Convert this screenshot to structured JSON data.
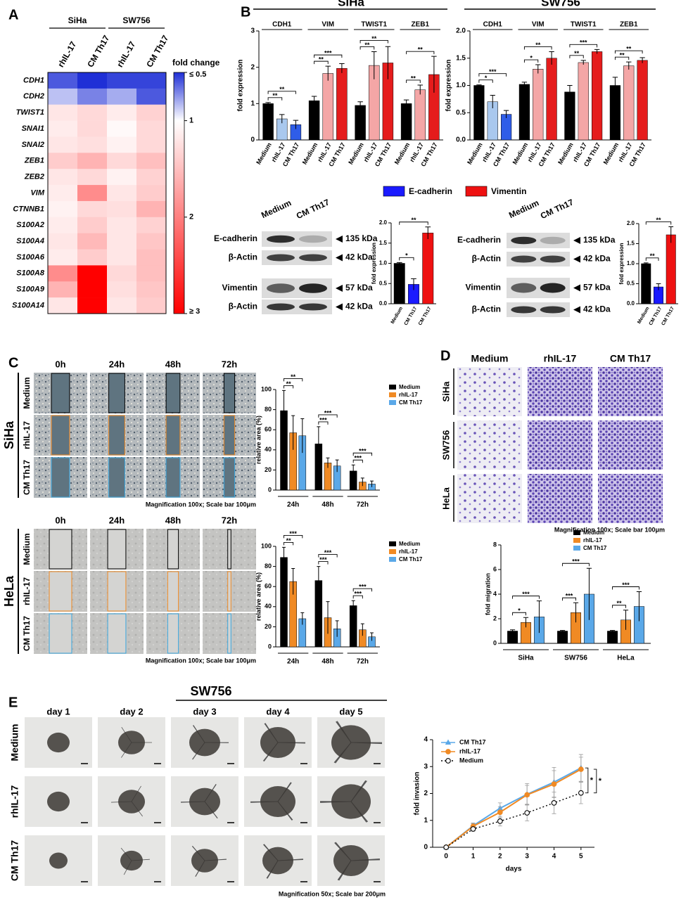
{
  "panel_labels": [
    "A",
    "B",
    "C",
    "D",
    "E"
  ],
  "chart_data": [
    {
      "type": "heatmap",
      "row_labels": [
        "CDH1",
        "CDH2",
        "TWIST1",
        "SNAI1",
        "SNAI2",
        "ZEB1",
        "ZEB2",
        "VIM",
        "CTNNB1",
        "S100A2",
        "S100A4",
        "S100A6",
        "S100A8",
        "S100A9",
        "S100A14"
      ],
      "groups": [
        "SiHa",
        "SW756"
      ],
      "columns": [
        "rhIL-17",
        "CM Th17",
        "rhIL-17",
        "CM Th17"
      ],
      "values": [
        [
          0.6,
          0.5,
          0.55,
          0.55
        ],
        [
          0.85,
          0.7,
          0.8,
          0.6
        ],
        [
          1.2,
          1.3,
          1.15,
          1.35
        ],
        [
          1.15,
          1.3,
          1.05,
          1.3
        ],
        [
          1.2,
          1.25,
          1.1,
          1.3
        ],
        [
          1.4,
          1.6,
          1.3,
          1.5
        ],
        [
          1.2,
          1.3,
          1.1,
          1.35
        ],
        [
          1.15,
          1.9,
          1.2,
          1.4
        ],
        [
          1.1,
          1.3,
          1.25,
          1.6
        ],
        [
          1.15,
          1.4,
          1.2,
          1.35
        ],
        [
          1.2,
          1.55,
          1.2,
          1.45
        ],
        [
          1.15,
          1.4,
          1.2,
          1.5
        ],
        [
          1.9,
          3,
          1.3,
          1.5
        ],
        [
          1.6,
          3,
          1.25,
          1.45
        ],
        [
          1.2,
          3,
          1.2,
          1.4
        ]
      ],
      "colorbar_title": "fold change",
      "clim": [
        0.5,
        3
      ],
      "cticks": [
        {
          "value": 0.5,
          "label": "≤ 0.5"
        },
        1,
        2,
        {
          "value": 3,
          "label": "≥ 3"
        }
      ],
      "colors": [
        "#1f2fd6",
        "#ffffff",
        "#ff0000"
      ]
    },
    {
      "type": "bar",
      "title": "SiHa",
      "categories": [
        "CDH1",
        "VIM",
        "TWIST1",
        "ZEB1"
      ],
      "series": [
        {
          "name": "Medium",
          "colors": [
            "#000000",
            "#000000",
            "#000000",
            "#000000"
          ],
          "values": [
            1.0,
            1.08,
            0.95,
            1.0
          ],
          "errors": [
            0.03,
            0.12,
            0.1,
            0.1
          ]
        },
        {
          "name": "rhIL-17",
          "colors": [
            "#a9c8ee",
            "#f4a6a6",
            "#f4a6a6",
            "#f4a6a6"
          ],
          "values": [
            0.58,
            1.83,
            2.05,
            1.38
          ],
          "errors": [
            0.12,
            0.2,
            0.38,
            0.13
          ]
        },
        {
          "name": "CM Th17",
          "colors": [
            "#2f5de8",
            "#e51c1c",
            "#e51c1c",
            "#e51c1c"
          ],
          "values": [
            0.42,
            1.97,
            2.12,
            1.8
          ],
          "errors": [
            0.12,
            0.13,
            0.45,
            0.5
          ]
        }
      ],
      "ylabel": "fold expression",
      "ylim": [
        0,
        3
      ],
      "yticks": [
        0,
        1,
        2,
        3
      ],
      "significance": [
        [
          "**",
          "**"
        ],
        [
          "**",
          "***"
        ],
        [
          "**",
          "**"
        ],
        [
          "**",
          "**"
        ]
      ]
    },
    {
      "type": "bar",
      "title": "SW756",
      "categories": [
        "CDH1",
        "VIM",
        "TWIST1",
        "ZEB1"
      ],
      "series": [
        {
          "name": "Medium",
          "colors": [
            "#000000",
            "#000000",
            "#000000",
            "#000000"
          ],
          "values": [
            1.0,
            1.02,
            0.88,
            1.0
          ],
          "errors": [
            0.01,
            0.04,
            0.12,
            0.15
          ]
        },
        {
          "name": "rhIL-17",
          "colors": [
            "#a9c8ee",
            "#f4a6a6",
            "#f4a6a6",
            "#f4a6a6"
          ],
          "values": [
            0.7,
            1.3,
            1.42,
            1.36
          ],
          "errors": [
            0.12,
            0.08,
            0.04,
            0.07
          ]
        },
        {
          "name": "CM Th17",
          "colors": [
            "#2f5de8",
            "#e51c1c",
            "#e51c1c",
            "#e51c1c"
          ],
          "values": [
            0.47,
            1.5,
            1.62,
            1.46
          ],
          "errors": [
            0.07,
            0.12,
            0.04,
            0.05
          ]
        }
      ],
      "ylabel": "fold expression",
      "ylim": [
        0,
        2
      ],
      "yticks": [
        {
          "value": 0,
          "label": "0.0"
        },
        {
          "value": 0.5,
          "label": "0.5"
        },
        {
          "value": 1,
          "label": "1.0"
        },
        {
          "value": 1.5,
          "label": "1.5"
        },
        {
          "value": 2,
          "label": "2.0"
        }
      ],
      "significance": [
        [
          "*",
          "***"
        ],
        [
          "*",
          "**"
        ],
        [
          "**",
          "***"
        ],
        [
          "**",
          "**"
        ]
      ]
    },
    {
      "type": "bar",
      "categories": [
        "Medium",
        "CM Th17",
        "CM Th17"
      ],
      "values": [
        1.0,
        0.48,
        1.75
      ],
      "errors": [
        0.02,
        0.14,
        0.15
      ],
      "colors": [
        "#000000",
        "#1a1aff",
        "#ee1111"
      ],
      "ylabel": "fold expression",
      "ylim": [
        0,
        2
      ],
      "yticks": [
        {
          "value": 0,
          "label": "0.0"
        },
        {
          "value": 0.5,
          "label": "0.5"
        },
        {
          "value": 1,
          "label": "1.0"
        },
        {
          "value": 1.5,
          "label": "1.5"
        },
        {
          "value": 2,
          "label": "2.0"
        }
      ],
      "significance": [
        "*",
        "**"
      ]
    },
    {
      "type": "bar",
      "categories": [
        "Medium",
        "CM Th17",
        "CM Th17"
      ],
      "values": [
        1.0,
        0.42,
        1.72
      ],
      "errors": [
        0.02,
        0.08,
        0.2
      ],
      "colors": [
        "#000000",
        "#1a1aff",
        "#ee1111"
      ],
      "ylabel": "fold expression",
      "ylim": [
        0,
        2
      ],
      "yticks": [
        {
          "value": 0,
          "label": "0.0"
        },
        {
          "value": 0.5,
          "label": "0.5"
        },
        {
          "value": 1,
          "label": "1.0"
        },
        {
          "value": 1.5,
          "label": "1.5"
        },
        {
          "value": 2,
          "label": "2.0"
        }
      ],
      "significance": [
        "**",
        "**"
      ]
    },
    {
      "type": "bar",
      "categories": [
        "24h",
        "48h",
        "72h"
      ],
      "series": [
        {
          "name": "Medium",
          "color": "#000000",
          "values": [
            79,
            46,
            19
          ],
          "errors": [
            20,
            17,
            6
          ]
        },
        {
          "name": "rhIL-17",
          "color": "#f08a24",
          "values": [
            57,
            27,
            8
          ],
          "errors": [
            17,
            5,
            4
          ]
        },
        {
          "name": "CM Th17",
          "color": "#5aa8e8",
          "values": [
            54,
            24,
            6
          ],
          "errors": [
            17,
            6,
            3
          ]
        }
      ],
      "ylabel": "relative area (%)",
      "ylim": [
        0,
        100
      ],
      "yticks": [
        0,
        20,
        40,
        60,
        80,
        100
      ],
      "legend": "upper right",
      "significance": [
        [
          "**",
          "**"
        ],
        [
          "***",
          "***"
        ],
        [
          "***",
          "***"
        ]
      ]
    },
    {
      "type": "bar",
      "categories": [
        "24h",
        "48h",
        "72h"
      ],
      "series": [
        {
          "name": "Medium",
          "color": "#000000",
          "values": [
            89,
            66,
            41
          ],
          "errors": [
            10,
            14,
            5
          ]
        },
        {
          "name": "rhIL-17",
          "color": "#f08a24",
          "values": [
            65,
            29,
            17
          ],
          "errors": [
            13,
            16,
            6
          ]
        },
        {
          "name": "CM Th17",
          "color": "#5aa8e8",
          "values": [
            28,
            18,
            10
          ],
          "errors": [
            6,
            8,
            4
          ]
        }
      ],
      "ylabel": "relative area (%)",
      "ylim": [
        0,
        100
      ],
      "yticks": [
        0,
        20,
        40,
        60,
        80,
        100
      ],
      "legend": "upper right",
      "significance": [
        [
          "**",
          "***"
        ],
        [
          "***",
          "***"
        ],
        [
          "***",
          "***"
        ]
      ]
    },
    {
      "type": "bar",
      "categories": [
        "SiHa",
        "SW756",
        "HeLa"
      ],
      "series": [
        {
          "name": "Medium",
          "color": "#000000",
          "values": [
            1,
            1,
            1
          ],
          "errors": [
            0.1,
            0.05,
            0.05
          ]
        },
        {
          "name": "rhIL-17",
          "color": "#f08a24",
          "values": [
            1.7,
            2.5,
            1.9
          ],
          "errors": [
            0.4,
            0.8,
            0.8
          ]
        },
        {
          "name": "CM Th17",
          "color": "#5aa8e8",
          "values": [
            2.15,
            4.0,
            3.0
          ],
          "errors": [
            1.3,
            2.1,
            1.2
          ]
        }
      ],
      "ylabel": "fold migration",
      "ylim": [
        0,
        8
      ],
      "yticks": [
        0,
        2,
        4,
        6,
        8
      ],
      "legend": "upper right",
      "significance": [
        [
          "*",
          "***"
        ],
        [
          "***",
          "***"
        ],
        [
          "**",
          "***"
        ]
      ]
    },
    {
      "type": "line",
      "x": [
        0,
        1,
        2,
        3,
        4,
        5
      ],
      "series": [
        {
          "name": "CM Th17",
          "color": "#5aa8e8",
          "marker": "triangle",
          "dash": false,
          "values": [
            0,
            0.8,
            1.45,
            1.97,
            2.42,
            2.95
          ],
          "errors": [
            0,
            0.1,
            0.2,
            0.4,
            0.55,
            0.5
          ]
        },
        {
          "name": "rhIL-17",
          "color": "#f08a24",
          "marker": "circle",
          "dash": false,
          "values": [
            0,
            0.78,
            1.3,
            1.95,
            2.35,
            2.9
          ],
          "errors": [
            0,
            0.1,
            0.2,
            0.35,
            0.5,
            0.45
          ]
        },
        {
          "name": "Medium",
          "color": "#000000",
          "marker": "open-circle",
          "dash": true,
          "values": [
            0,
            0.68,
            0.97,
            1.28,
            1.65,
            2.02
          ],
          "errors": [
            0,
            0.08,
            0.18,
            0.3,
            0.4,
            0.4
          ]
        }
      ],
      "xlabel": "days",
      "ylabel": "fold invasion",
      "xlim": [
        -0.5,
        5.5
      ],
      "ylim": [
        0,
        4
      ],
      "xticks": [
        0,
        1,
        2,
        3,
        4,
        5
      ],
      "yticks": [
        0,
        1,
        2,
        3,
        4
      ],
      "legend": "upper left",
      "significance": [
        "*",
        "*"
      ]
    }
  ],
  "blots": [
    {
      "columns": [
        "Medium",
        "CM Th17"
      ],
      "rows": [
        {
          "label": "E-cadherin",
          "size": "135 kDa"
        },
        {
          "label": "β-Actin",
          "size": "42 kDa"
        },
        {
          "label": "Vimentin",
          "size": "57 kDa"
        },
        {
          "label": "β-Actin",
          "size": "42 kDa"
        }
      ]
    },
    {
      "columns": [
        "Medium",
        "CM Th17"
      ],
      "rows": [
        {
          "label": "E-cadherin",
          "size": "135 kDa"
        },
        {
          "label": "β-Actin",
          "size": "42 kDa"
        },
        {
          "label": "Vimentin",
          "size": "57 kDa"
        },
        {
          "label": "β-Actin",
          "size": "42 kDa"
        }
      ]
    }
  ],
  "blot_legend": [
    {
      "name": "E-cadherin",
      "color": "#1a1aff"
    },
    {
      "name": "Vimentin",
      "color": "#ee1111"
    }
  ],
  "wound": {
    "panels": [
      "SiHa",
      "HeLa"
    ],
    "columns": [
      "0h",
      "24h",
      "48h",
      "72h"
    ],
    "rows": [
      "Medium",
      "rhIL-17",
      "CM Th17"
    ],
    "caption": "Magnification 100x; Scale bar 100μm"
  },
  "transwell": {
    "columns": [
      "Medium",
      "rhIL-17",
      "CM Th17"
    ],
    "rows": [
      "SiHa",
      "SW756",
      "HeLa"
    ],
    "caption": "Magnification 100x; Scale bar 100μm"
  },
  "spheroid": {
    "title": "SW756",
    "columns": [
      "day 1",
      "day 2",
      "day 3",
      "day 4",
      "day 5"
    ],
    "rows": [
      "Medium",
      "rhIL-17",
      "CM Th17"
    ],
    "caption": "Magnification 50x; Scale bar 200μm"
  }
}
